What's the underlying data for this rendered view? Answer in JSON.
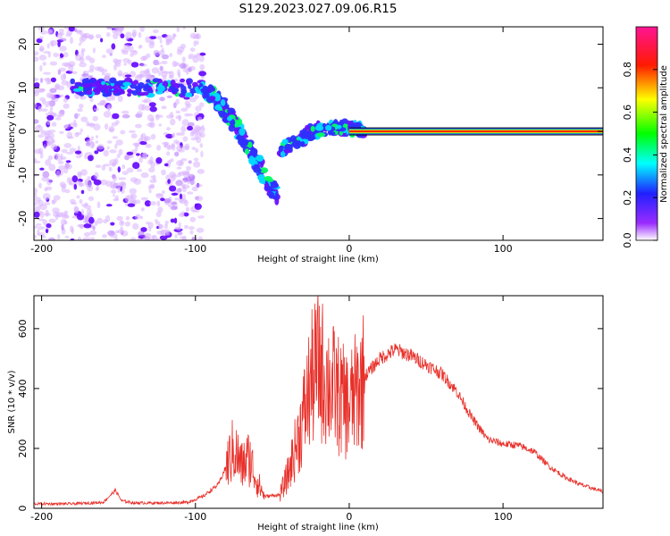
{
  "title": "S129.2023.027.09.06.R15",
  "chart_data": [
    {
      "type": "heatmap",
      "xlabel": "Height of straight line (km)",
      "ylabel": "Frequency (Hz)",
      "xlim": [
        -205,
        165
      ],
      "ylim": [
        -25,
        24
      ],
      "xticks": [
        -200,
        -100,
        0,
        100
      ],
      "xtick_labels": [
        "-200",
        "-100",
        "0",
        "100"
      ],
      "yticks": [
        -20,
        -10,
        0,
        10,
        20
      ],
      "ytick_labels": [
        "-20",
        "-10",
        "0",
        "10",
        "20"
      ],
      "colorbar": {
        "label": "Normalized spectral amplitude",
        "range": [
          0,
          1
        ],
        "ticks": [
          0.0,
          0.2,
          0.4,
          0.6,
          0.8
        ],
        "tick_labels": [
          "0.0",
          "0.2",
          "0.4",
          "0.6",
          "0.8"
        ],
        "colors": [
          "#ffffff",
          "#8a1cff",
          "#2020ff",
          "#00ffff",
          "#00ff00",
          "#ffff00",
          "#ff0000",
          "#ff1493"
        ]
      },
      "features": [
        {
          "name": "scatter-field",
          "x_range": [
            -205,
            -95
          ],
          "y_range": [
            -25,
            24
          ]
        },
        {
          "name": "band-10hz",
          "x_range": [
            -180,
            -95
          ],
          "y": 10
        },
        {
          "name": "descending-trace",
          "points": [
            [
              -95,
              10
            ],
            [
              -85,
              7
            ],
            [
              -75,
              2
            ],
            [
              -65,
              -4
            ],
            [
              -55,
              -10
            ],
            [
              -47,
              -15
            ]
          ]
        },
        {
          "name": "rising-trace",
          "points": [
            [
              -45,
              -4
            ],
            [
              -35,
              -3
            ],
            [
              -25,
              0
            ],
            [
              -10,
              1
            ],
            [
              0,
              1
            ],
            [
              10,
              0
            ]
          ]
        },
        {
          "name": "flat-line-0hz",
          "x_range": [
            0,
            165
          ],
          "y": 0
        }
      ]
    },
    {
      "type": "line",
      "xlabel": "Height of straight line (km)",
      "ylabel": "SNR (10 * v/v)",
      "xlim": [
        -205,
        165
      ],
      "ylim": [
        0,
        710
      ],
      "xticks": [
        -200,
        -100,
        0,
        100
      ],
      "xtick_labels": [
        "-200",
        "-100",
        "0",
        "100"
      ],
      "yticks": [
        0,
        200,
        400,
        600
      ],
      "ytick_labels": [
        "0",
        "200",
        "400",
        "600"
      ],
      "series": [
        {
          "color": "#e8302a",
          "x": [
            -205,
            -180,
            -160,
            -152,
            -148,
            -140,
            -120,
            -105,
            -95,
            -85,
            -75,
            -70,
            -65,
            -60,
            -55,
            -45,
            -40,
            -35,
            -30,
            -25,
            -20,
            -15,
            -10,
            -5,
            0,
            5,
            10,
            20,
            30,
            40,
            50,
            60,
            70,
            80,
            90,
            100,
            110,
            120,
            130,
            140,
            150,
            165
          ],
          "y": [
            15,
            15,
            20,
            60,
            25,
            18,
            18,
            20,
            40,
            80,
            200,
            140,
            170,
            90,
            40,
            45,
            110,
            200,
            300,
            420,
            480,
            430,
            400,
            360,
            340,
            390,
            440,
            500,
            530,
            510,
            480,
            450,
            390,
            300,
            230,
            215,
            210,
            190,
            140,
            105,
            80,
            55
          ]
        }
      ]
    }
  ]
}
